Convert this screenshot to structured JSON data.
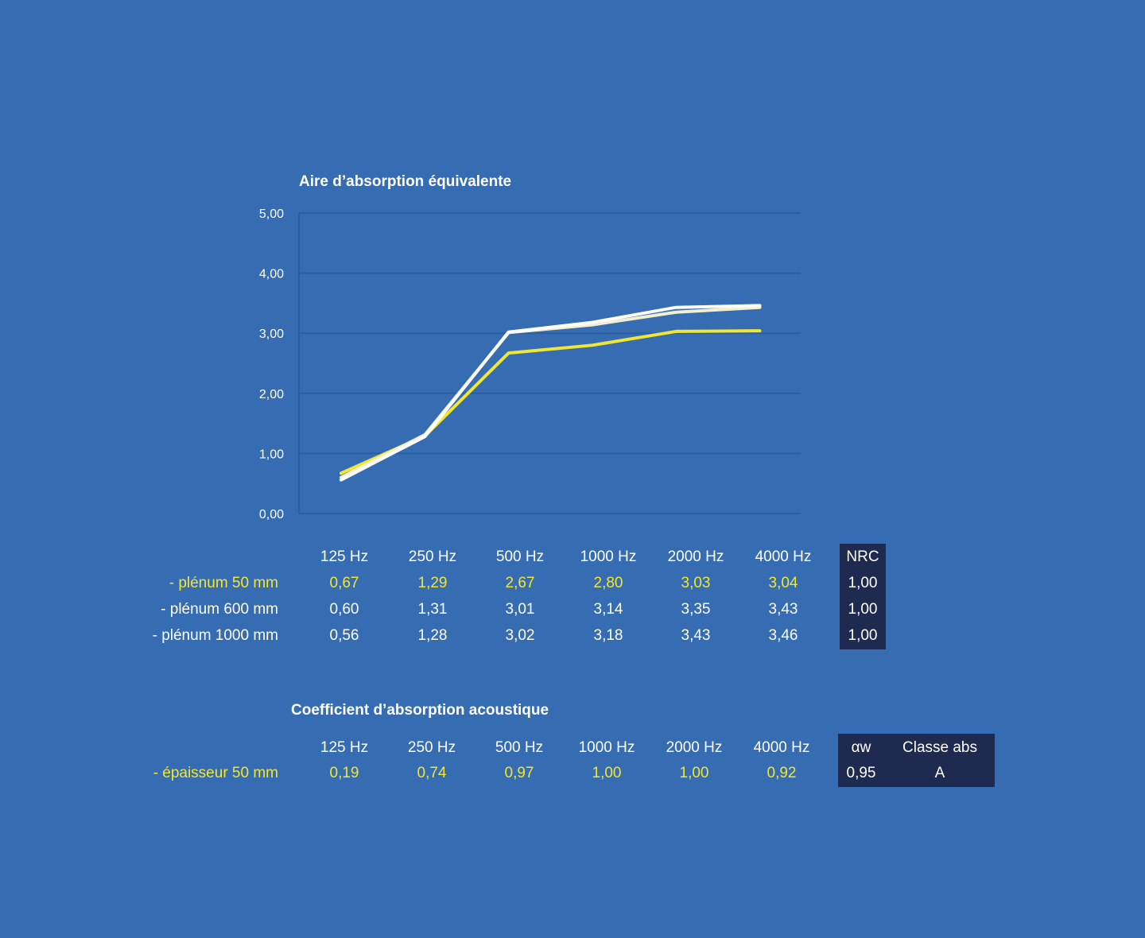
{
  "chart_title": "Aire d’absorption équivalente",
  "colors": {
    "background": "#366cb2",
    "gridline": "#2a5ea3",
    "yellow": "#f2e632",
    "white": "#ffffff",
    "cream": "#f4efcf",
    "dark_box": "#1e2a4f"
  },
  "chart_data": {
    "type": "line",
    "title": "Aire d’absorption équivalente",
    "categories": [
      "125 Hz",
      "250 Hz",
      "500 Hz",
      "1000 Hz",
      "2000 Hz",
      "4000 Hz"
    ],
    "ylim": [
      0,
      5
    ],
    "yticks": [
      "0,00",
      "1,00",
      "2,00",
      "3,00",
      "4,00",
      "5,00"
    ],
    "grid": true,
    "series": [
      {
        "name": "- plénum 50 mm",
        "color": "#f2e632",
        "values": [
          0.67,
          1.29,
          2.67,
          2.8,
          3.03,
          3.04
        ]
      },
      {
        "name": "-  plénum 600 mm",
        "color": "#f4efcf",
        "values": [
          0.6,
          1.31,
          3.01,
          3.14,
          3.35,
          3.43
        ]
      },
      {
        "name": "-  plénum 1000 mm",
        "color": "#ffffff",
        "values": [
          0.56,
          1.28,
          3.02,
          3.18,
          3.43,
          3.46
        ]
      }
    ]
  },
  "table1": {
    "headers": [
      "125 Hz",
      "250 Hz",
      "500 Hz",
      "1000 Hz",
      "2000 Hz",
      "4000 Hz"
    ],
    "nrc_header": "NRC",
    "rows": [
      {
        "label": "- plénum 50 mm",
        "values": [
          "0,67",
          "1,29",
          "2,67",
          "2,80",
          "3,03",
          "3,04"
        ],
        "nrc": "1,00"
      },
      {
        "label": "-  plénum 600 mm",
        "values": [
          "0,60",
          "1,31",
          "3,01",
          "3,14",
          "3,35",
          "3,43"
        ],
        "nrc": "1,00"
      },
      {
        "label": "-  plénum 1000 mm",
        "values": [
          "0,56",
          "1,28",
          "3,02",
          "3,18",
          "3,43",
          "3,46"
        ],
        "nrc": "1,00"
      }
    ]
  },
  "section2_title": "Coefficient d’absorption acoustique",
  "table2": {
    "headers": [
      "125 Hz",
      "250 Hz",
      "500 Hz",
      "1000 Hz",
      "2000 Hz",
      "4000 Hz"
    ],
    "aw_header": "αw",
    "class_header": "Classe abs",
    "rows": [
      {
        "label": "- épaisseur 50 mm",
        "values": [
          "0,19",
          "0,74",
          "0,97",
          "1,00",
          "1,00",
          "0,92"
        ],
        "aw": "0,95",
        "class": "A"
      }
    ]
  }
}
